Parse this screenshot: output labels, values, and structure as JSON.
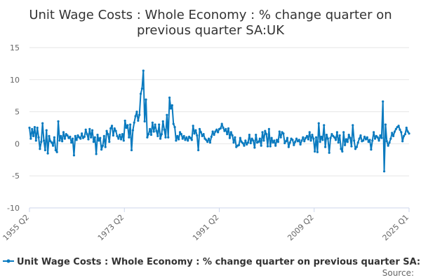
{
  "chart_data": {
    "type": "line",
    "title_line1": "Unit Wage Costs : Whole Economy : % change quarter on",
    "title_line2": "previous quarter SA:UK",
    "xlabel": "",
    "ylabel": "",
    "ylim": [
      -10,
      15
    ],
    "yticks": [
      -10,
      -5,
      0,
      5,
      10,
      15
    ],
    "xticks": [
      "1955 Q2",
      "1973 Q2",
      "1991 Q2",
      "2009 Q2",
      "2025 Q1"
    ],
    "grid": true,
    "legend_position": "bottom",
    "source_label": "Source:",
    "color": "#0a7abf",
    "series": [
      {
        "name": "Unit Wage Costs : Whole Economy : % change quarter on previous quarter SA:UK",
        "x_start": "1955 Q2",
        "x_end": "2025 Q1",
        "values": [
          2.5,
          0.8,
          2.3,
          1.2,
          2.6,
          0.5,
          2.5,
          1.0,
          -0.8,
          0.3,
          3.2,
          0.5,
          -1.0,
          2.1,
          -1.5,
          1.2,
          0.4,
          0.2,
          -0.3,
          1.0,
          -1.0,
          -1.3,
          3.5,
          0.5,
          1.2,
          0.4,
          1.8,
          0.8,
          1.5,
          1.3,
          0.9,
          1.1,
          0.2,
          0.8,
          -1.8,
          1.2,
          0.6,
          1.3,
          1.0,
          0.8,
          1.6,
          0.9,
          1.1,
          2.2,
          1.5,
          0.7,
          2.3,
          1.0,
          2.1,
          0.3,
          1.0,
          -1.6,
          1.4,
          0.5,
          0.9,
          -0.9,
          -0.3,
          1.2,
          -0.5,
          2.0,
          1.5,
          0.3,
          2.4,
          2.8,
          1.3,
          2.4,
          2.0,
          1.2,
          0.8,
          1.4,
          0.7,
          1.5,
          0.5,
          3.6,
          2.5,
          2.9,
          1.0,
          3.0,
          -1.0,
          2.1,
          3.3,
          4.3,
          5.0,
          3.6,
          4.5,
          7.8,
          8.6,
          11.4,
          3.5,
          6.9,
          1.0,
          1.5,
          2.3,
          1.4,
          3.3,
          1.9,
          3.0,
          2.0,
          1.2,
          3.0,
          0.8,
          1.5,
          3.5,
          2.2,
          1.0,
          4.5,
          1.0,
          7.2,
          5.5,
          6.0,
          3.1,
          2.6,
          0.5,
          1.2,
          0.7,
          1.8,
          1.5,
          0.8,
          1.2,
          0.6,
          1.0,
          0.5,
          1.1,
          0.9,
          0.6,
          2.8,
          1.6,
          2.1,
          1.3,
          -1.0,
          2.3,
          1.8,
          1.2,
          1.5,
          0.8,
          0.6,
          0.3,
          0.8,
          0.2,
          1.1,
          1.9,
          1.4,
          1.9,
          2.2,
          1.8,
          2.3,
          2.4,
          3.1,
          2.5,
          2.0,
          2.3,
          1.5,
          2.4,
          0.9,
          1.8,
          1.3,
          0.2,
          1.0,
          -0.5,
          -0.3,
          -0.2,
          0.9,
          0.3,
          0.1,
          -0.3,
          0.5,
          -0.1,
          0.2,
          1.4,
          0.1,
          0.8,
          0.5,
          -0.6,
          1.4,
          0.2,
          0.3,
          0.8,
          -0.3,
          1.8,
          0.5,
          2.0,
          1.5,
          -0.4,
          2.3,
          -0.4,
          0.9,
          0.2,
          0.5,
          -0.3,
          0.6,
          0.3,
          1.9,
          1.0,
          1.8,
          1.6,
          0.1,
          0.4,
          0.9,
          -0.5,
          0.2,
          0.8,
          0.6,
          -0.2,
          0.3,
          0.8,
          0.4,
          0.6,
          -0.1,
          0.5,
          1.0,
          0.4,
          0.9,
          1.2,
          0.7,
          1.8,
          0.5,
          1.4,
          0.8,
          -1.2,
          1.0,
          -1.3,
          3.2,
          0.3,
          1.1,
          0.6,
          2.9,
          -0.5,
          1.4,
          0.8,
          -1.4,
          0.9,
          1.5,
          1.2,
          1.0,
          0.6,
          1.8,
          0.2,
          1.3,
          -0.8,
          -1.2,
          1.8,
          -0.2,
          0.7,
          0.3,
          1.4,
          0.9,
          -0.4,
          2.9,
          0.5,
          -0.8,
          -0.5,
          0.2,
          0.8,
          1.3,
          0.4,
          0.5,
          1.1,
          0.7,
          1.0,
          0.3,
          0.6,
          -0.9,
          0.5,
          1.8,
          0.8,
          1.2,
          1.0,
          0.5,
          1.3,
          0.9,
          6.6,
          -4.3,
          3.0,
          0.4,
          -0.3,
          0.2,
          0.8,
          1.7,
          1.2,
          1.9,
          2.3,
          2.6,
          2.8,
          2.2,
          1.8,
          0.4,
          1.2,
          1.5,
          2.5,
          1.9,
          1.6
        ]
      }
    ]
  }
}
